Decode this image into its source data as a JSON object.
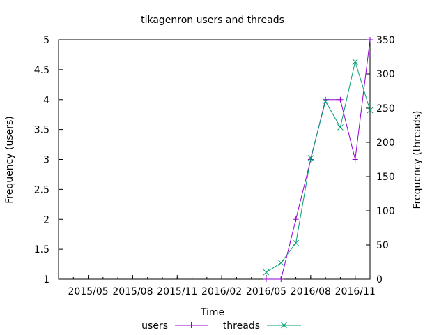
{
  "chart_data": {
    "type": "line",
    "title": "tikagenron users and threads",
    "xlabel": "Time",
    "ylabel_left": "Frequency (users)",
    "ylabel_right": "Frequency (threads)",
    "x_ticks": [
      "2015/05",
      "2015/08",
      "2015/11",
      "2016/02",
      "2016/05",
      "2016/08",
      "2016/11"
    ],
    "x_range": [
      "2015/03",
      "2016/12"
    ],
    "ylim_left": [
      1,
      5
    ],
    "yticks_left": [
      "1",
      "1.5",
      "2",
      "2.5",
      "3",
      "3.5",
      "4",
      "4.5",
      "5"
    ],
    "ylim_right": [
      0,
      350
    ],
    "yticks_right": [
      "0",
      "50",
      "100",
      "150",
      "200",
      "250",
      "300",
      "350"
    ],
    "legend_position": "bottom",
    "series": [
      {
        "name": "users",
        "axis": "left",
        "color": "#9400d3",
        "marker": "plus",
        "x": [
          "2016/05",
          "2016/06",
          "2016/07",
          "2016/08",
          "2016/09",
          "2016/10",
          "2016/11",
          "2016/12"
        ],
        "values": [
          1,
          1,
          2,
          3,
          4,
          4,
          3,
          5
        ]
      },
      {
        "name": "threads",
        "axis": "right",
        "color": "#009e73",
        "marker": "cross",
        "x": [
          "2016/05",
          "2016/06",
          "2016/07",
          "2016/08",
          "2016/09",
          "2016/10",
          "2016/11",
          "2016/12"
        ],
        "values": [
          10,
          24,
          53,
          177,
          260,
          222,
          318,
          247
        ]
      }
    ]
  }
}
